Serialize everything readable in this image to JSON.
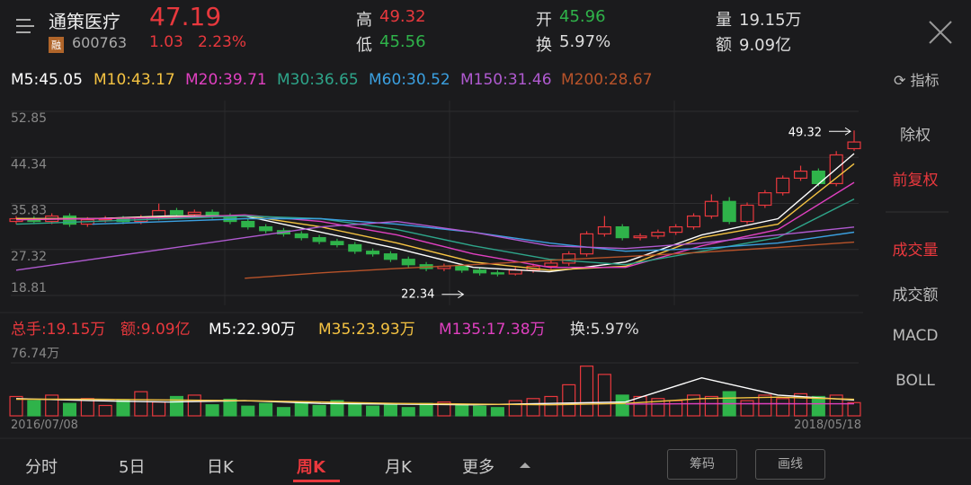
{
  "header": {
    "name": "通策医疗",
    "price": "47.19",
    "badge": "融",
    "code": "600763",
    "change": "1.03",
    "change_pct": "2.23%",
    "stats": [
      {
        "label": "高",
        "value": "49.32"
      },
      {
        "label": "开",
        "value": "45.96"
      },
      {
        "label": "量",
        "value": "19.15万"
      },
      {
        "label": "低",
        "value": "45.56"
      },
      {
        "label": "换",
        "value": "5.97%"
      },
      {
        "label": "额",
        "value": "9.09亿"
      }
    ]
  },
  "indicator_button": "指标",
  "side_menu": [
    "除权",
    "前复权",
    "成交量",
    "成交额",
    "MACD",
    "BOLL"
  ],
  "tabs": [
    "分时",
    "5日",
    "日K",
    "周K",
    "月K",
    "更多"
  ],
  "tools": [
    "筹码",
    "画线"
  ],
  "chart_data": [
    {
      "type": "candlestick",
      "up_color": "#e8383d",
      "down_color": "#2fb34a",
      "ylim": [
        18.81,
        52.85
      ],
      "yticks": [
        52.85,
        44.34,
        35.83,
        27.32,
        18.81
      ],
      "grid": true,
      "open": [
        32.5,
        33,
        32.5,
        33.5,
        32,
        32.8,
        33,
        32.5,
        33.2,
        34.5,
        33.8,
        34.2,
        33.5,
        32.5,
        31.5,
        30.8,
        30.2,
        29.5,
        28.8,
        28.2,
        27,
        26.5,
        25.5,
        24.5,
        23.8,
        24.2,
        23.5,
        23,
        22.8,
        23.5,
        24.2,
        24.8,
        26.5,
        30.2,
        31.5,
        29.5,
        29.8,
        30.5,
        31.5,
        33.5,
        36.2,
        32.5,
        35.5,
        37.8,
        40.5,
        41.8,
        39.5,
        45.96
      ],
      "high": [
        33.5,
        33.5,
        34,
        34,
        33.3,
        33.5,
        33.5,
        33.7,
        35.8,
        35,
        34.7,
        34.7,
        34,
        33,
        32,
        31.3,
        30.7,
        30,
        29.3,
        28.7,
        27.5,
        27,
        26,
        25,
        24.7,
        24.7,
        24,
        23.5,
        24,
        24.7,
        25.3,
        27,
        30.7,
        33.5,
        32,
        30.3,
        31,
        32,
        34,
        37.5,
        37,
        36,
        38.3,
        41,
        42.8,
        42.3,
        45.5,
        49.32
      ],
      "low": [
        32,
        32,
        32,
        31.5,
        31.5,
        32.3,
        32,
        32,
        32.7,
        33.3,
        33.3,
        33,
        32,
        31,
        30.3,
        29.7,
        29,
        28.3,
        27.7,
        26.5,
        26,
        25,
        24,
        23.3,
        23.3,
        23,
        22.5,
        22.34,
        22.5,
        23,
        23.7,
        24.3,
        26,
        29.7,
        29,
        29,
        29.3,
        30,
        31,
        33,
        32,
        32,
        35,
        37.3,
        40,
        39,
        39,
        45.56
      ],
      "close": [
        33,
        32.5,
        33.5,
        32,
        32.8,
        33,
        32.5,
        33.2,
        34.5,
        33.8,
        34.2,
        33.5,
        32.5,
        31.5,
        30.8,
        30.2,
        29.5,
        28.8,
        28.2,
        27,
        26.5,
        25.5,
        24.5,
        23.8,
        24.2,
        23.5,
        23,
        22.8,
        23.5,
        24.2,
        24.8,
        26.5,
        30.2,
        31.5,
        29.5,
        29.8,
        30.5,
        31.5,
        33.5,
        36.2,
        32.5,
        35.5,
        37.8,
        40.5,
        41.8,
        39.5,
        44.8,
        47.19
      ],
      "series": [
        {
          "name": "M5:45.05",
          "color": "#ffffff",
          "values": [
            33,
            33,
            33.5,
            33.5,
            30.5,
            27.5,
            24,
            23.2,
            25,
            30,
            33,
            45.05
          ]
        },
        {
          "name": "M10:43.17",
          "color": "#f5c342",
          "values": [
            33,
            33,
            33.3,
            33.6,
            31.5,
            28.5,
            25,
            23.5,
            24.2,
            29.5,
            32,
            43.17
          ]
        },
        {
          "name": "M20:39.71",
          "color": "#e040c0",
          "values": [
            32.8,
            33,
            33.2,
            33.7,
            32.5,
            30,
            26.5,
            24,
            24,
            28,
            31,
            39.71
          ]
        },
        {
          "name": "M30:36.65",
          "color": "#2ea58a",
          "values": [
            32,
            32.5,
            33,
            33.5,
            33,
            31,
            28,
            25.5,
            24.5,
            27,
            29.5,
            36.65
          ]
        },
        {
          "name": "M60:30.52",
          "color": "#3ba0e0",
          "values": [
            null,
            32,
            32.5,
            33,
            33,
            32,
            30.5,
            28.5,
            27,
            27.5,
            28.5,
            30.52
          ]
        },
        {
          "name": "M150:31.46",
          "color": "#b05ad0",
          "values": [
            23.5,
            25.5,
            27.5,
            29.5,
            31.5,
            32.5,
            30.5,
            28,
            27.5,
            28.5,
            30,
            31.46
          ]
        },
        {
          "name": "M200:28.67",
          "color": "#b8532a",
          "values": [
            null,
            null,
            null,
            22,
            23,
            23.8,
            24.5,
            25.3,
            26,
            26.8,
            27.7,
            28.67
          ]
        }
      ]
    },
    {
      "type": "bar",
      "legend": [
        "总手:19.15万",
        "额:9.09亿"
      ],
      "ylim": [
        0,
        76.74
      ],
      "yticks": [
        {
          "value": 76.74,
          "label": "76.74万"
        }
      ],
      "x_range_labels": [
        "2016/07/08",
        "2018/05/18"
      ],
      "values": [
        28,
        22,
        30,
        18,
        25,
        15,
        22,
        35,
        20,
        28,
        30,
        16,
        24,
        14,
        18,
        12,
        20,
        15,
        22,
        18,
        14,
        16,
        12,
        18,
        20,
        15,
        14,
        12,
        22,
        25,
        28,
        45,
        72,
        60,
        30,
        28,
        25,
        22,
        30,
        28,
        35,
        22,
        30,
        25,
        32,
        28,
        30,
        19.15
      ],
      "series": [
        {
          "name": "M5:22.90万",
          "color": "#ffffff",
          "values": [
            25,
            22,
            20,
            22,
            18,
            17,
            16,
            18,
            20,
            55,
            30,
            22.9
          ]
        },
        {
          "name": "M35:23.93万",
          "color": "#f5c342",
          "values": [
            24,
            24,
            23,
            22,
            20,
            18,
            17,
            16,
            18,
            25,
            27,
            23.93
          ]
        },
        {
          "name": "M135:17.38万",
          "color": "#e040c0",
          "values": [
            null,
            null,
            null,
            null,
            null,
            null,
            null,
            null,
            17,
            17.5,
            17.5,
            17.38
          ]
        }
      ],
      "turnover": "换:5.97%"
    }
  ]
}
